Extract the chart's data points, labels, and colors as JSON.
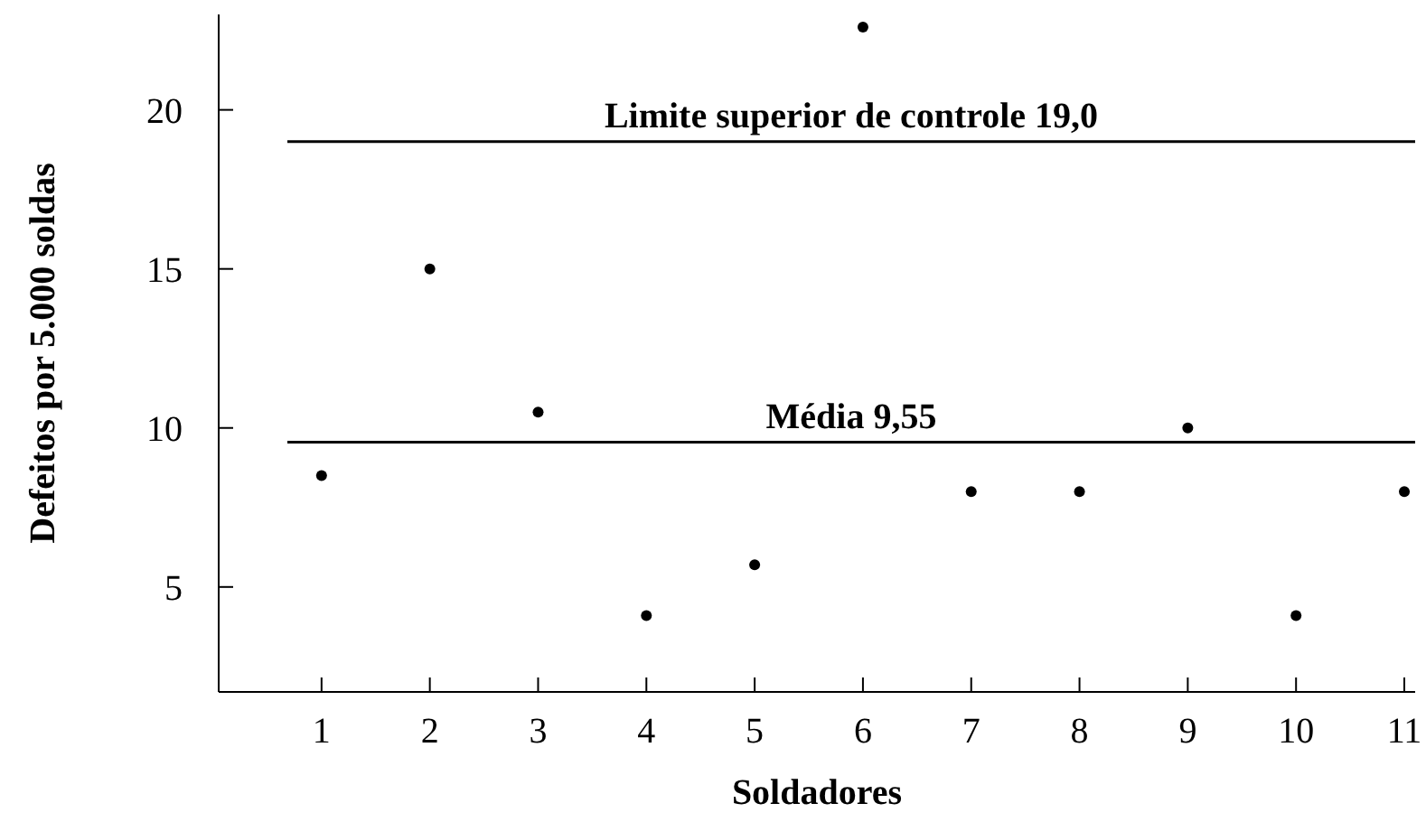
{
  "chart_data": {
    "type": "scatter",
    "xlabel": "Soldadores",
    "ylabel": "Defeitos por 5.000 soldas",
    "x": [
      1,
      2,
      3,
      4,
      5,
      6,
      7,
      8,
      9,
      10,
      11
    ],
    "values": [
      8.5,
      15,
      10.5,
      4.1,
      5.7,
      22.6,
      8,
      8,
      10,
      4.1,
      8
    ],
    "color": "#000000",
    "marker": "circle",
    "grid": false,
    "xlim": [
      0.05,
      11.1
    ],
    "xticks": [
      1,
      2,
      3,
      4,
      5,
      6,
      7,
      8,
      9,
      10,
      11
    ],
    "ylim": [
      1.7,
      23
    ],
    "yticks": [
      5,
      10,
      15,
      20
    ],
    "ref_lines": [
      {
        "axis": "y",
        "value": 19.0,
        "label": "Limite superior de controle 19,0",
        "color": "#000000"
      },
      {
        "axis": "y",
        "value": 9.55,
        "label": "Média 9,55",
        "color": "#000000"
      }
    ]
  }
}
